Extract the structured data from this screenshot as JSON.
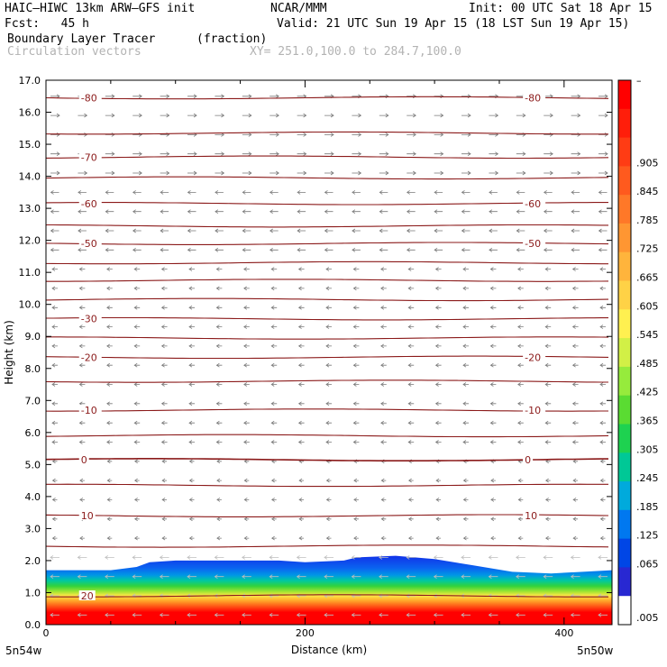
{
  "header": {
    "model": "HAIC–HIWC 13km ARW–GFS init",
    "org": "NCAR/MMM",
    "init": "Init: 00 UTC Sat 18 Apr 15",
    "fcst": "Fcst:   45 h",
    "valid": "Valid: 21 UTC Sun 19 Apr 15 (18 LST Sun 19 Apr 15)",
    "field": "Boundary Layer Tracer",
    "units": "(fraction)",
    "vectors": "Circulation vectors",
    "xy": "XY= 251.0,100.0 to 284.7,100.0"
  },
  "chart_data": {
    "type": "heatmap",
    "title": "Boundary Layer Tracer",
    "xlabel": "Distance (km)",
    "ylabel": "Height (km)",
    "xlim": [
      0,
      437
    ],
    "ylim": [
      0,
      17
    ],
    "x_ticks": [
      {
        "value": 0,
        "label": "0"
      },
      {
        "value": 200,
        "label": "200"
      },
      {
        "value": 400,
        "label": "400"
      }
    ],
    "x_end_labels": {
      "left": "5n54w",
      "right": "5n50w"
    },
    "y_ticks": [
      0,
      1,
      2,
      3,
      4,
      5,
      6,
      7,
      8,
      9,
      10,
      11,
      12,
      13,
      14,
      15,
      16,
      17
    ],
    "y_tick_labels": [
      "0.0",
      "1.0",
      "2.0",
      "3.0",
      "4.0",
      "5.0",
      "6.0",
      "7.0",
      "8.0",
      "9.0",
      "10.0",
      "11.0",
      "12.0",
      "13.0",
      "14.0",
      "15.0",
      "16.0",
      "17.0"
    ],
    "colorbar": {
      "labels": [
        "–",
        ".905",
        ".845",
        ".785",
        ".725",
        ".665",
        ".605",
        ".545",
        ".485",
        ".425",
        ".365",
        ".305",
        ".245",
        ".185",
        ".125",
        ".065",
        ".005"
      ],
      "colors_top_to_bottom": [
        "#ff0000",
        "#ff1e0a",
        "#ff3c14",
        "#ff5a1e",
        "#ff7828",
        "#ff9632",
        "#ffb43c",
        "#ffd246",
        "#fff050",
        "#d2f046",
        "#96eb3c",
        "#5adc32",
        "#1ed250",
        "#00c896",
        "#00aadc",
        "#0078f0",
        "#0046e6",
        "#2828d2",
        "#ffffff"
      ]
    },
    "temperature_contours": [
      {
        "value": -80,
        "label": "-80",
        "y_km": 16.45
      },
      {
        "value": -75,
        "label": "",
        "y_km": 15.35
      },
      {
        "value": -70,
        "label": "-70",
        "y_km": 14.6
      },
      {
        "value": -65,
        "label": "",
        "y_km": 13.95
      },
      {
        "value": -60,
        "label": "-60",
        "y_km": 13.15
      },
      {
        "value": -55,
        "label": "",
        "y_km": 12.45
      },
      {
        "value": -50,
        "label": "-50",
        "y_km": 11.9
      },
      {
        "value": -45,
        "label": "",
        "y_km": 11.3
      },
      {
        "value": -40,
        "label": "",
        "y_km": 10.75
      },
      {
        "value": -35,
        "label": "",
        "y_km": 10.15
      },
      {
        "value": -30,
        "label": "-30",
        "y_km": 9.55
      },
      {
        "value": -25,
        "label": "",
        "y_km": 8.95
      },
      {
        "value": -20,
        "label": "-20",
        "y_km": 8.35
      },
      {
        "value": -15,
        "label": "",
        "y_km": 7.6
      },
      {
        "value": -10,
        "label": "-10",
        "y_km": 6.7
      },
      {
        "value": -5,
        "label": "",
        "y_km": 5.9
      },
      {
        "value": 0,
        "label": "0",
        "y_km": 5.15
      },
      {
        "value": 5,
        "label": "",
        "y_km": 4.35
      },
      {
        "value": 10,
        "label": "10",
        "y_km": 3.4
      },
      {
        "value": 15,
        "label": "",
        "y_km": 2.45
      },
      {
        "value": 20,
        "label": "20",
        "y_km": 0.9
      }
    ],
    "bl_top_km": [
      {
        "x": 0,
        "y": 1.7
      },
      {
        "x": 50,
        "y": 1.7
      },
      {
        "x": 70,
        "y": 1.8
      },
      {
        "x": 80,
        "y": 1.95
      },
      {
        "x": 100,
        "y": 2.0
      },
      {
        "x": 150,
        "y": 2.0
      },
      {
        "x": 180,
        "y": 2.0
      },
      {
        "x": 200,
        "y": 1.95
      },
      {
        "x": 230,
        "y": 2.0
      },
      {
        "x": 240,
        "y": 2.1
      },
      {
        "x": 270,
        "y": 2.15
      },
      {
        "x": 300,
        "y": 2.05
      },
      {
        "x": 330,
        "y": 1.85
      },
      {
        "x": 360,
        "y": 1.65
      },
      {
        "x": 390,
        "y": 1.6
      },
      {
        "x": 437,
        "y": 1.7
      }
    ]
  }
}
